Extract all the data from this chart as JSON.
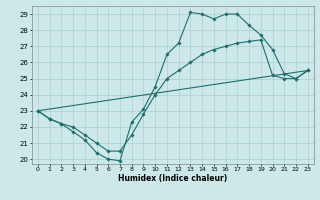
{
  "xlabel": "Humidex (Indice chaleur)",
  "bg_color": "#cce8e8",
  "grid_color": "#aacfcf",
  "line_color": "#1e6e6e",
  "xlim": [
    -0.5,
    23.5
  ],
  "ylim": [
    19.7,
    29.5
  ],
  "xticks": [
    0,
    1,
    2,
    3,
    4,
    5,
    6,
    7,
    8,
    9,
    10,
    11,
    12,
    13,
    14,
    15,
    16,
    17,
    18,
    19,
    20,
    21,
    22,
    23
  ],
  "yticks": [
    20,
    21,
    22,
    23,
    24,
    25,
    26,
    27,
    28,
    29
  ],
  "line1_x": [
    0,
    1,
    2,
    3,
    4,
    5,
    6,
    7,
    8,
    9,
    10,
    11,
    12,
    13,
    14,
    15,
    16,
    17,
    18,
    19,
    20,
    21,
    22,
    23
  ],
  "line1_y": [
    23.0,
    22.5,
    22.2,
    21.7,
    21.2,
    20.4,
    20.0,
    19.9,
    22.3,
    23.1,
    24.5,
    26.5,
    27.2,
    29.1,
    29.0,
    28.7,
    29.0,
    29.0,
    28.3,
    27.7,
    26.8,
    25.3,
    25.0,
    25.5
  ],
  "line2_x": [
    0,
    1,
    2,
    3,
    4,
    5,
    6,
    7,
    8,
    9,
    10,
    11,
    12,
    13,
    14,
    15,
    16,
    17,
    18,
    19,
    20,
    21,
    22,
    23
  ],
  "line2_y": [
    23.0,
    22.5,
    22.2,
    22.0,
    21.5,
    21.0,
    20.5,
    20.5,
    21.5,
    22.8,
    24.0,
    25.0,
    25.5,
    26.0,
    26.5,
    26.8,
    27.0,
    27.2,
    27.3,
    27.4,
    25.2,
    25.0,
    25.0,
    25.5
  ],
  "line3_x": [
    0,
    23
  ],
  "line3_y": [
    23.0,
    25.5
  ],
  "marker_style": "D",
  "marker_size": 1.8,
  "line_width": 0.8,
  "tick_labelsize": 5,
  "xlabel_fontsize": 5.5,
  "xlabel_fontweight": "bold"
}
